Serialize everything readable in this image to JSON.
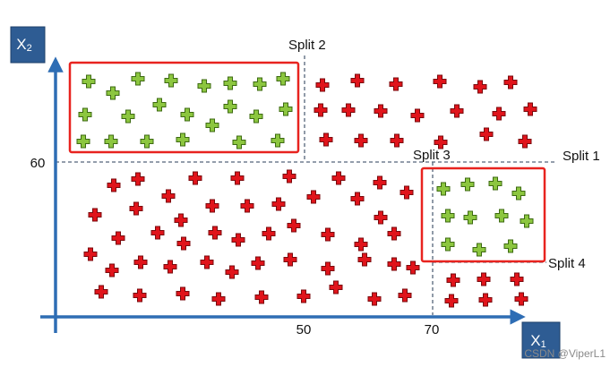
{
  "axes": {
    "y_label": {
      "text": "X",
      "subscript": "2"
    },
    "x_label": {
      "text": "X",
      "subscript": "1"
    },
    "y_tick": "60",
    "x_ticks": [
      "50",
      "70"
    ]
  },
  "splits": [
    "Split 1",
    "Split 2",
    "Split 3",
    "Split 4"
  ],
  "watermark": "CSDN @ViperL1"
}
